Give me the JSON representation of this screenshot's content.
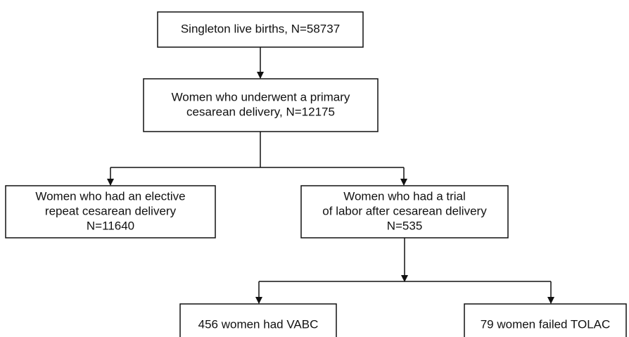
{
  "nodes": [
    {
      "lines": [
        "Singleton live births, N=58737"
      ]
    },
    {
      "lines": [
        "Women who underwent a primary",
        "cesarean delivery, N=12175"
      ]
    },
    {
      "lines": [
        "Women who had an elective",
        "repeat cesarean delivery",
        "N=11640"
      ]
    },
    {
      "lines": [
        "Women who had a trial",
        "of labor after cesarean delivery",
        "N=535"
      ]
    },
    {
      "lines": [
        "456 women had VABC"
      ]
    },
    {
      "lines": [
        "79 women failed TOLAC"
      ]
    }
  ]
}
